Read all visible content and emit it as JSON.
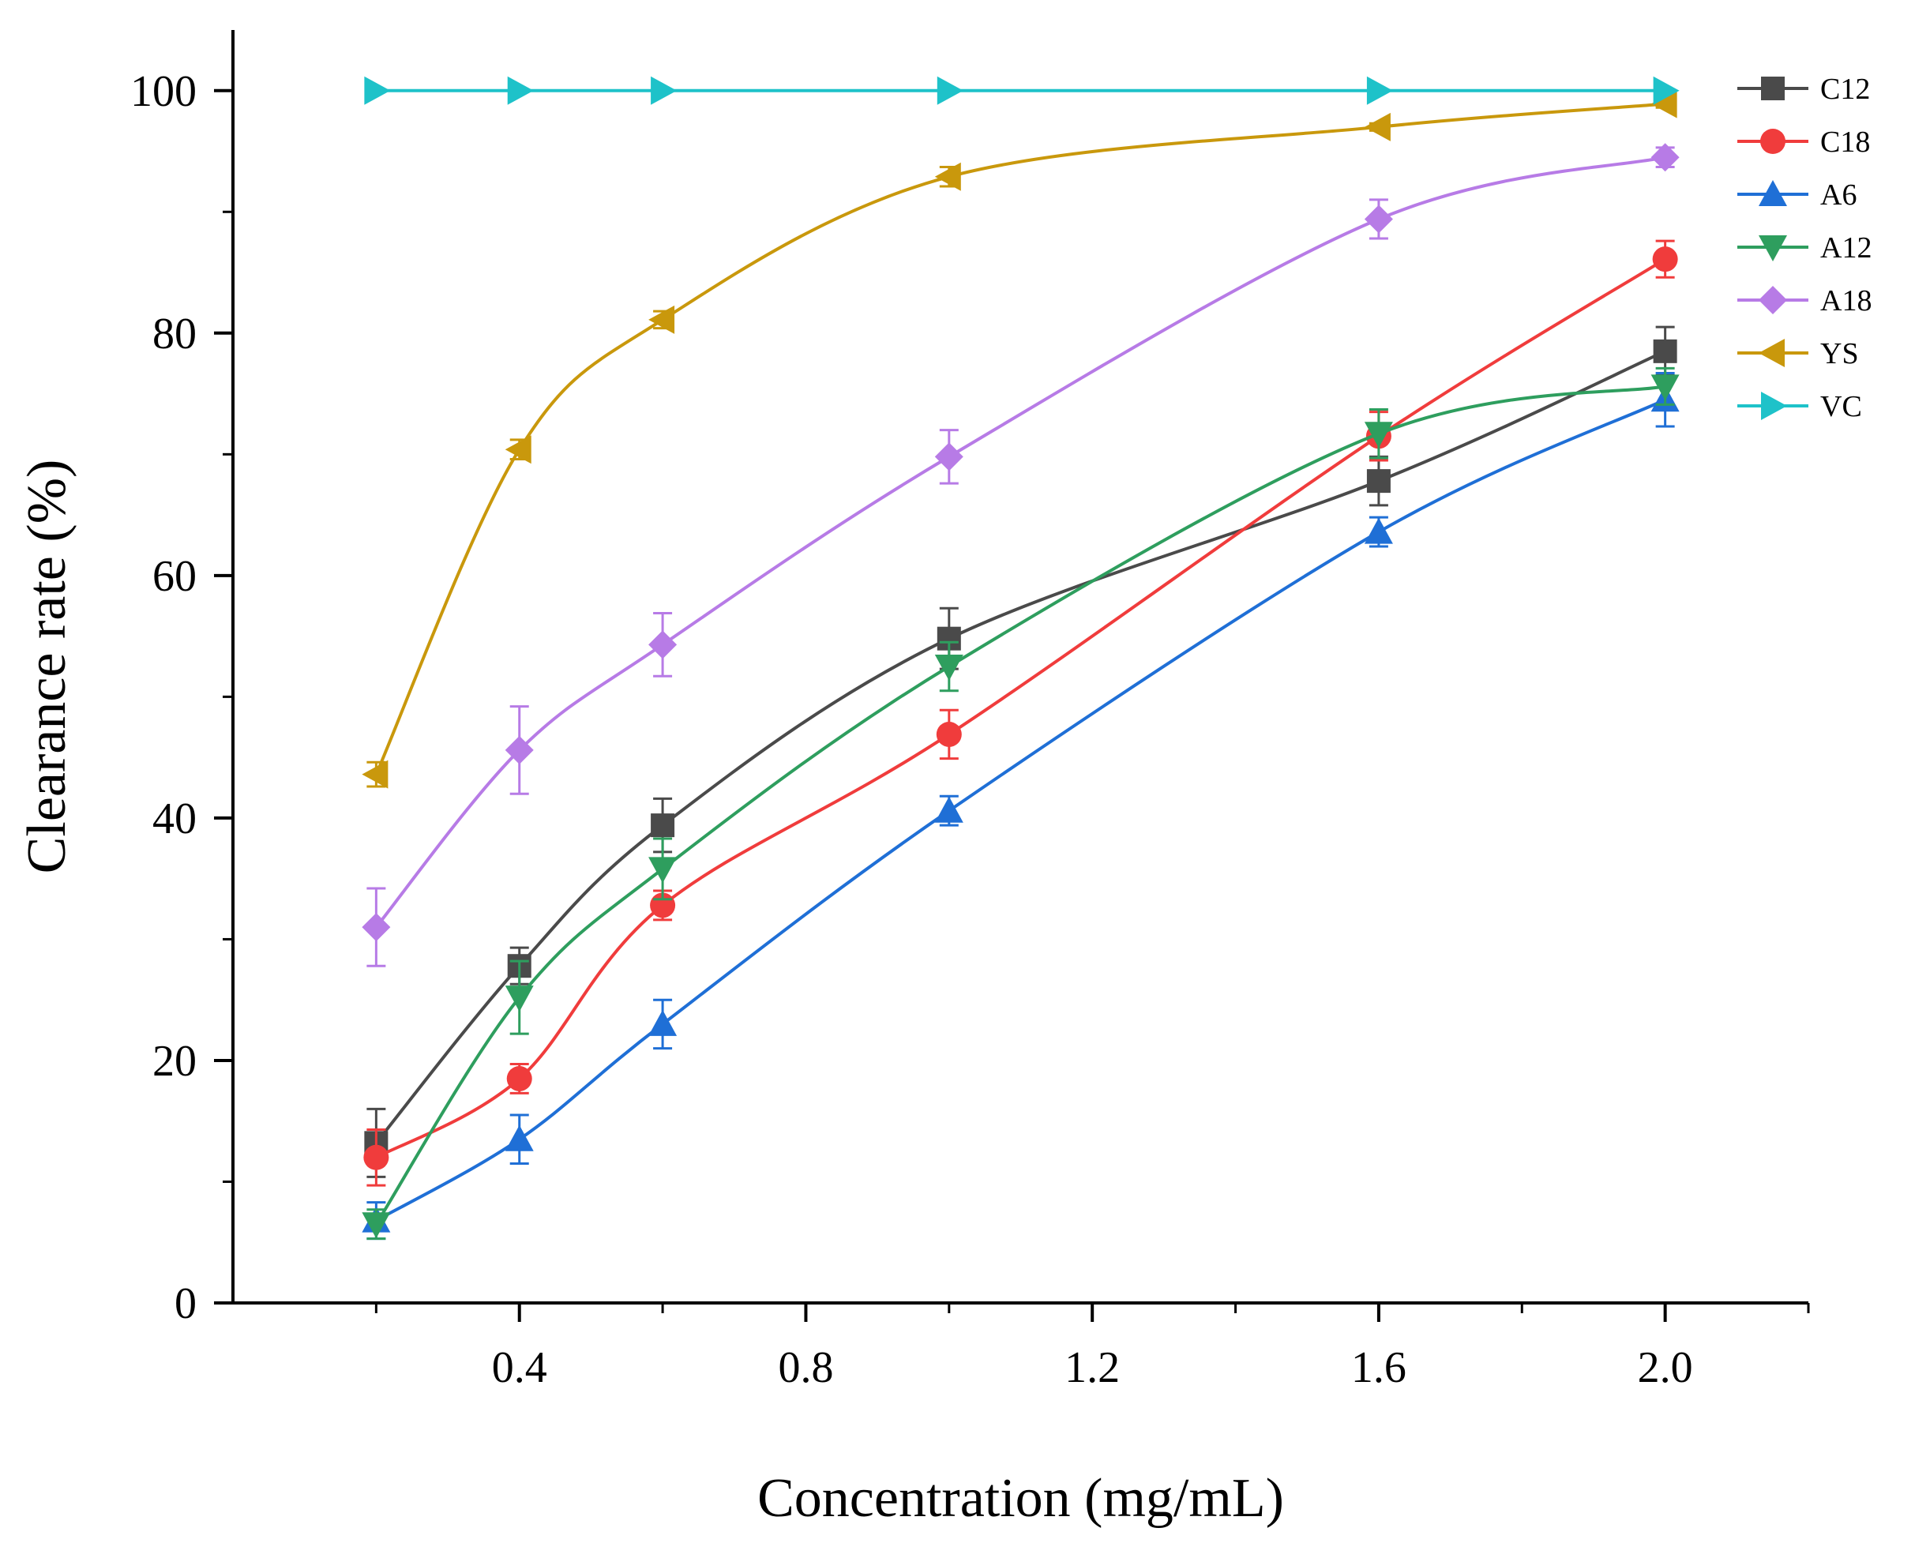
{
  "chart_data": {
    "type": "line",
    "xlabel": "Concentration (mg/mL)",
    "ylabel": "Clearance rate (%)",
    "xlim": [
      0.0,
      2.2
    ],
    "ylim": [
      0,
      105
    ],
    "x_ticks": [
      0.4,
      0.8,
      1.2,
      1.6,
      2.0
    ],
    "x_tick_labels": [
      "0.4",
      "0.8",
      "1.2",
      "1.6",
      "2.0"
    ],
    "x_minor_ticks": [
      0.2,
      0.6,
      1.0,
      1.4,
      1.8,
      2.2
    ],
    "y_ticks": [
      0,
      20,
      40,
      60,
      80,
      100
    ],
    "y_tick_labels": [
      "0",
      "20",
      "40",
      "60",
      "80",
      "100"
    ],
    "y_minor_ticks": [
      10,
      30,
      50,
      70,
      90
    ],
    "grid": false,
    "legend_position": "top-right",
    "x": [
      0.2,
      0.4,
      0.6,
      1.0,
      1.6,
      2.0
    ],
    "series": [
      {
        "name": "C12",
        "color": "#4a4a4a",
        "marker": "square",
        "values": [
          13.2,
          27.8,
          39.4,
          54.8,
          67.8,
          78.5
        ],
        "errors": [
          2.8,
          1.5,
          2.2,
          2.5,
          2.0,
          2.0
        ]
      },
      {
        "name": "C18",
        "color": "#f03c3c",
        "marker": "circle",
        "values": [
          12.0,
          18.5,
          32.8,
          46.9,
          71.5,
          86.1
        ],
        "errors": [
          2.3,
          1.2,
          1.2,
          2.0,
          2.0,
          1.5
        ]
      },
      {
        "name": "A6",
        "color": "#1f6fd6",
        "marker": "triangle-up",
        "values": [
          6.8,
          13.5,
          23.0,
          40.6,
          63.6,
          74.5
        ],
        "errors": [
          1.5,
          2.0,
          2.0,
          1.2,
          1.2,
          2.2
        ]
      },
      {
        "name": "A12",
        "color": "#2e9e5e",
        "marker": "triangle-down",
        "values": [
          6.5,
          25.2,
          35.8,
          52.5,
          71.7,
          75.6
        ],
        "errors": [
          1.2,
          3.0,
          2.5,
          2.0,
          2.0,
          1.5
        ]
      },
      {
        "name": "A18",
        "color": "#b77be6",
        "marker": "diamond",
        "values": [
          31.0,
          45.6,
          54.3,
          69.8,
          89.4,
          94.5
        ],
        "errors": [
          3.2,
          3.6,
          2.6,
          2.2,
          1.6,
          0.8
        ]
      },
      {
        "name": "YS",
        "color": "#c9980c",
        "marker": "triangle-left",
        "values": [
          43.6,
          70.4,
          81.1,
          92.9,
          97.0,
          98.9
        ],
        "errors": [
          1.0,
          0.8,
          0.7,
          0.8,
          0.3,
          0.3
        ]
      },
      {
        "name": "VC",
        "color": "#1ec2c9",
        "marker": "triangle-right",
        "values": [
          100.0,
          100.0,
          100.0,
          100.0,
          100.0,
          100.0
        ],
        "errors": [
          0,
          0,
          0,
          0,
          0,
          0
        ]
      }
    ]
  }
}
